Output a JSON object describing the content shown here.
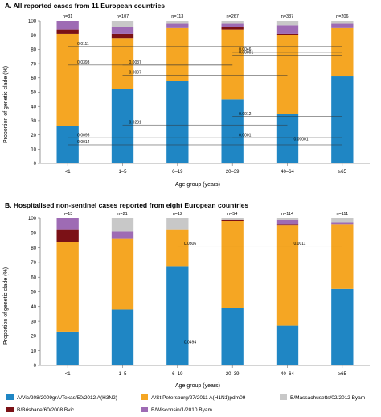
{
  "chart_data": [
    {
      "type": "bar",
      "stacked": true,
      "title": "A. All reported cases from 11 European countries",
      "xlabel": "Age group (years)",
      "ylabel": "Proportion of genetic clade (%)",
      "ylim": [
        0,
        100
      ],
      "yticks": [
        0,
        10,
        20,
        30,
        40,
        50,
        60,
        70,
        80,
        90,
        100
      ],
      "grid": false,
      "categories": [
        "<1",
        "1–5",
        "6–19",
        "20–39",
        "40–64",
        "≥65"
      ],
      "n_labels": [
        "n=31",
        "n=107",
        "n=113",
        "n=267",
        "n=337",
        "n=206"
      ],
      "series": [
        {
          "name": "A/Vic/208/2009grA/Texas/50/2012 A(H3N2)",
          "color": "#1f86c4",
          "values": [
            26,
            52,
            58,
            45,
            35,
            61
          ]
        },
        {
          "name": "A/St Petersburg/27/2011 A(H1N1)pdm09",
          "color": "#f5a623",
          "values": [
            65,
            36,
            37,
            49,
            55,
            34
          ]
        },
        {
          "name": "B/Brisbane/60/2008 Bvic",
          "color": "#7b1116",
          "values": [
            3,
            3,
            0,
            2,
            1,
            0
          ]
        },
        {
          "name": "B/Wisconsin/1/2010 Byam",
          "color": "#9e6bb4",
          "values": [
            6,
            5,
            3,
            2,
            6,
            3
          ]
        },
        {
          "name": "B/Massachusetts/02/2012 Byam",
          "color": "#c8c8c8",
          "values": [
            0,
            4,
            2,
            2,
            3,
            2
          ]
        }
      ],
      "annotations": [
        {
          "label": "0.0111",
          "from": "<1",
          "to": "≥65",
          "y": 82
        },
        {
          "label": "0.0046",
          "from": "20–39",
          "to": "≥65",
          "y": 78
        },
        {
          "label": "0.00001",
          "from": "20–39",
          "to": "≥65",
          "y": 76
        },
        {
          "label": "0.0393",
          "from": "<1",
          "to": "20–39",
          "y": 69
        },
        {
          "label": "0.0037",
          "from": "1–5",
          "to": "20–39",
          "y": 69
        },
        {
          "label": "0.0097",
          "from": "1–5",
          "to": "40–64",
          "y": 62
        },
        {
          "label": "0.0012",
          "from": "20–39",
          "to": "≥65",
          "y": 33
        },
        {
          "label": "0.0231",
          "from": "1–5",
          "to": "40–64",
          "y": 27
        },
        {
          "label": "0.0095",
          "from": "<1",
          "to": "≥65",
          "y": 18
        },
        {
          "label": "0.0001",
          "from": "20–39",
          "to": "≥65",
          "y": 18
        },
        {
          "label": "0.00001",
          "from": "40–64",
          "to": "≥65",
          "y": 15
        },
        {
          "label": "0.0014",
          "from": "<1",
          "to": "≥65",
          "y": 13
        }
      ]
    },
    {
      "type": "bar",
      "stacked": true,
      "title": "B. Hospitalised non-sentinel cases reported from eight European countries",
      "xlabel": "Age group (years)",
      "ylabel": "Proportion of genetic clade (%)",
      "ylim": [
        0,
        100
      ],
      "yticks": [
        0,
        10,
        20,
        30,
        40,
        50,
        60,
        70,
        80,
        90,
        100
      ],
      "grid": false,
      "categories": [
        "<1",
        "1–5",
        "6–19",
        "20–39",
        "40–64",
        "≥65"
      ],
      "n_labels": [
        "n=13",
        "n=21",
        "n=12",
        "n=54",
        "n=114",
        "n=111"
      ],
      "series": [
        {
          "name": "A/Vic/208/2009grA/Texas/50/2012 A(H3N2)",
          "color": "#1f86c4",
          "values": [
            23,
            38,
            67,
            39,
            27,
            52
          ]
        },
        {
          "name": "A/St Petersburg/27/2011 A(H1N1)pdm09",
          "color": "#f5a623",
          "values": [
            61,
            48,
            25,
            59,
            68,
            44
          ]
        },
        {
          "name": "B/Brisbane/60/2008 Bvic",
          "color": "#7b1116",
          "values": [
            8,
            0,
            0,
            1,
            1,
            0
          ]
        },
        {
          "name": "B/Wisconsin/1/2010 Byam",
          "color": "#9e6bb4",
          "values": [
            8,
            5,
            0,
            0,
            3,
            1
          ]
        },
        {
          "name": "B/Massachusetts/02/2012 Byam",
          "color": "#c8c8c8",
          "values": [
            0,
            9,
            8,
            1,
            1,
            3
          ]
        }
      ],
      "annotations": [
        {
          "label": "0.0306",
          "from": "6–19",
          "to": "40–64",
          "y": 81
        },
        {
          "label": "0.0011",
          "from": "40–64",
          "to": "≥65",
          "y": 81
        },
        {
          "label": "0.0494",
          "from": "6–19",
          "to": "40–64",
          "y": 14
        }
      ]
    }
  ],
  "legend": {
    "position": "bottom",
    "items": [
      {
        "label": "A/Vic/208/2009grA/Texas/50/2012 A(H3N2)",
        "color": "#1f86c4"
      },
      {
        "label": "A/St Petersburg/27/2011 A(H1N1)pdm09",
        "color": "#f5a623"
      },
      {
        "label": "B/Massachusetts/02/2012 Byam",
        "color": "#c8c8c8"
      },
      {
        "label": "B/Brisbane/60/2008 Bvic",
        "color": "#7b1116"
      },
      {
        "label": "B/Wisconsin/1/2010 Byam",
        "color": "#9e6bb4"
      }
    ]
  }
}
